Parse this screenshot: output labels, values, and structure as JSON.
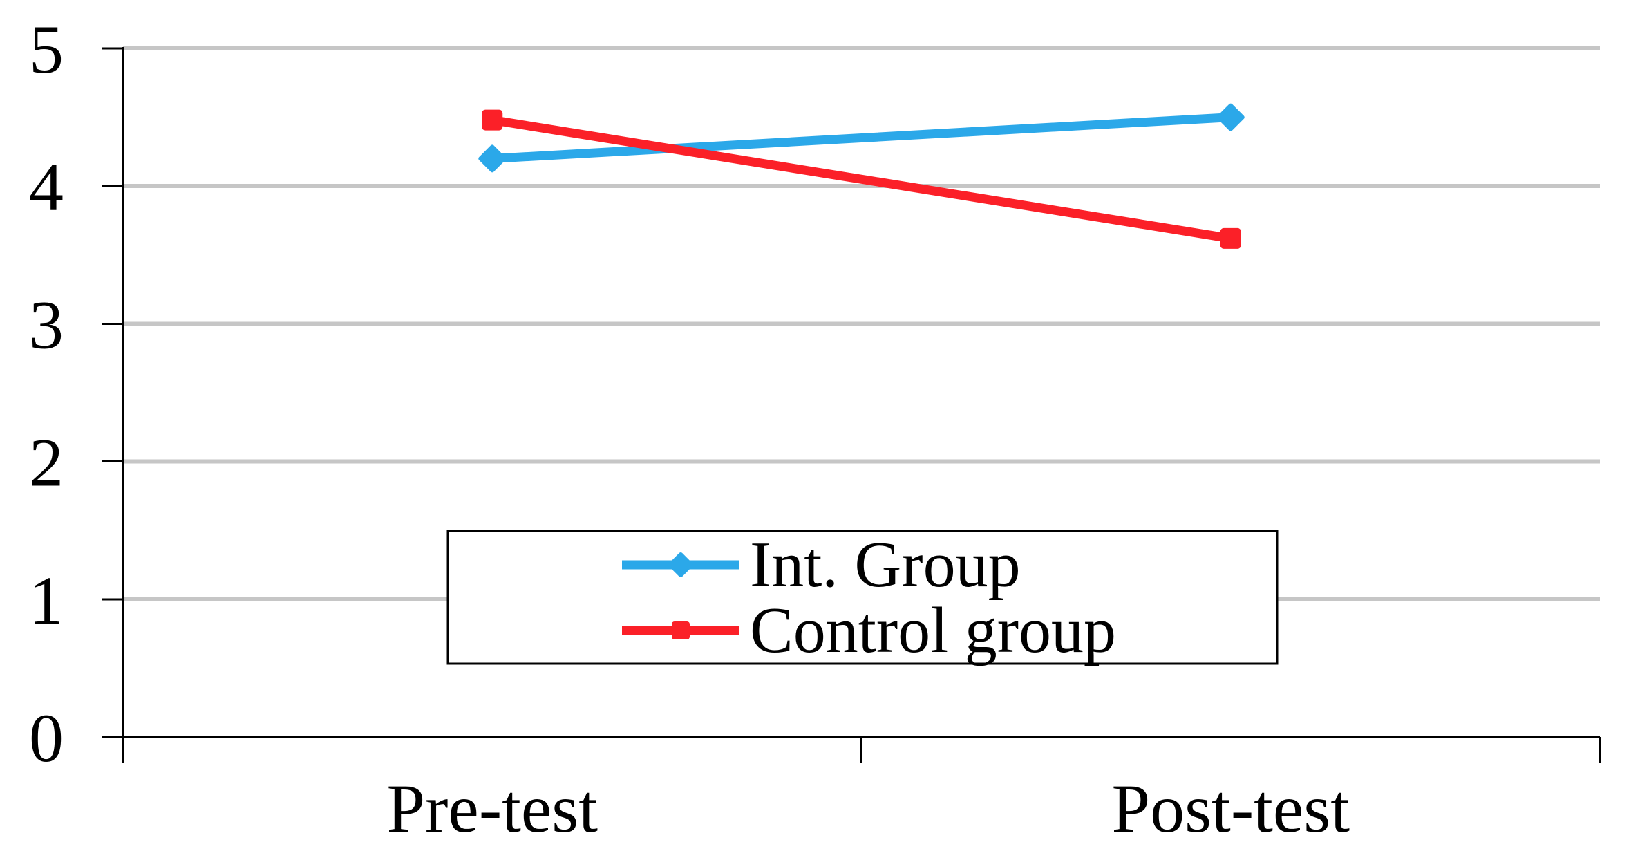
{
  "chart_data": {
    "type": "line",
    "title": "",
    "xlabel": "",
    "ylabel": "",
    "categories": [
      "Pre-test",
      "Post-test"
    ],
    "series": [
      {
        "name": "Int. Group",
        "color": "#2BA8E9",
        "marker": "diamond",
        "values": [
          4.2,
          4.5
        ]
      },
      {
        "name": "Control group",
        "color": "#FB2028",
        "marker": "square",
        "values": [
          4.48,
          3.62
        ]
      }
    ],
    "ylim": [
      0,
      5
    ],
    "yticks": [
      0,
      1,
      2,
      3,
      4,
      5
    ],
    "grid": "horizontal",
    "gridline_color": "#C6C6C6",
    "axis_color": "#000000",
    "background_color": "#FFFFFF",
    "legend": {
      "position": "inside-bottom-center",
      "border": true,
      "entries": [
        "Int. Group",
        "Control group"
      ]
    }
  }
}
